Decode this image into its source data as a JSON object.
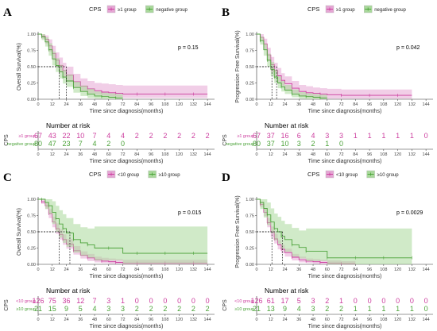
{
  "chart_data": [
    {
      "panel": "A",
      "type": "line",
      "legend_title": "CPS",
      "legend_position": "top",
      "ylabel": "Overall Survival(%)",
      "xlabel": "Time since diagnosis(months)",
      "x_ticks": [
        "0",
        "12",
        "24",
        "36",
        "48",
        "60",
        "72",
        "84",
        "96",
        "108",
        "120",
        "132",
        "144"
      ],
      "y_ticks": [
        "0.00",
        "0.25",
        "0.50",
        "0.75",
        "1.00"
      ],
      "xlim": [
        0,
        150
      ],
      "ylim": [
        0,
        1
      ],
      "p_value": "p = 0.15",
      "median_lines": [
        18,
        24
      ],
      "series": [
        {
          "name": "≥1 group",
          "color": "#CC3D9E",
          "band_color": "#E5A6D4",
          "x": [
            0,
            3,
            6,
            9,
            12,
            15,
            18,
            21,
            24,
            30,
            36,
            42,
            48,
            54,
            60,
            66,
            72,
            84,
            96,
            108,
            120,
            132,
            144
          ],
          "y": [
            1,
            0.97,
            0.92,
            0.82,
            0.7,
            0.6,
            0.52,
            0.44,
            0.37,
            0.27,
            0.2,
            0.16,
            0.13,
            0.11,
            0.1,
            0.09,
            0.08,
            0.08,
            0.08,
            0.08,
            0.08,
            0.08,
            0.08
          ],
          "lower": [
            1,
            0.93,
            0.85,
            0.73,
            0.6,
            0.5,
            0.41,
            0.33,
            0.27,
            0.18,
            0.12,
            0.09,
            0.07,
            0.05,
            0.04,
            0.03,
            0.02,
            0.02,
            0.02,
            0.02,
            0.02,
            0.02,
            0.02
          ],
          "upper": [
            1,
            1,
            0.98,
            0.92,
            0.82,
            0.72,
            0.64,
            0.56,
            0.5,
            0.39,
            0.32,
            0.28,
            0.25,
            0.24,
            0.23,
            0.22,
            0.21,
            0.21,
            0.21,
            0.21,
            0.21,
            0.21,
            0.21
          ]
        },
        {
          "name": "negative group",
          "color": "#4CA33A",
          "band_color": "#A9D89B",
          "x": [
            0,
            3,
            6,
            9,
            12,
            15,
            18,
            21,
            24,
            30,
            36,
            42,
            48,
            54,
            60,
            66,
            72
          ],
          "y": [
            1,
            0.96,
            0.88,
            0.76,
            0.62,
            0.52,
            0.42,
            0.34,
            0.28,
            0.18,
            0.12,
            0.08,
            0.05,
            0.04,
            0.03,
            0.02,
            0.02
          ],
          "lower": [
            1,
            0.91,
            0.81,
            0.67,
            0.52,
            0.42,
            0.32,
            0.24,
            0.19,
            0.1,
            0.05,
            0.02,
            0.01,
            0,
            0,
            0,
            0
          ],
          "upper": [
            1,
            1,
            0.95,
            0.86,
            0.73,
            0.63,
            0.53,
            0.45,
            0.38,
            0.27,
            0.21,
            0.16,
            0.12,
            0.1,
            0.09,
            0.08,
            0.08
          ]
        }
      ],
      "risk_table": {
        "title": "Number at risk",
        "axis_label": "CPS",
        "xlabel": "Time since diagnosis(months)",
        "rows": [
          {
            "label": "≥1 group",
            "values": [
              "67",
              "43",
              "22",
              "10",
              "7",
              "4",
              "4",
              "2",
              "2",
              "2",
              "2",
              "2",
              "2"
            ]
          },
          {
            "label": "negative group",
            "values": [
              "80",
              "47",
              "23",
              "7",
              "4",
              "2",
              "0",
              "",
              "",
              "",
              "",
              "",
              ""
            ]
          }
        ]
      }
    },
    {
      "panel": "B",
      "type": "line",
      "legend_title": "CPS",
      "legend_position": "top",
      "ylabel": "Progression Free Survival(%)",
      "xlabel": "Time since diagnosis(months)",
      "x_ticks": [
        "0",
        "12",
        "24",
        "36",
        "48",
        "60",
        "72",
        "84",
        "96",
        "108",
        "120",
        "132",
        "144"
      ],
      "y_ticks": [
        "0.00",
        "0.25",
        "0.50",
        "0.75",
        "1.00"
      ],
      "xlim": [
        0,
        150
      ],
      "ylim": [
        0,
        1
      ],
      "p_value": "p = 0.042",
      "median_lines": [
        13,
        17
      ],
      "series": [
        {
          "name": "≥1 group",
          "color": "#CC3D9E",
          "band_color": "#E5A6D4",
          "x": [
            0,
            3,
            6,
            9,
            12,
            15,
            18,
            21,
            24,
            30,
            36,
            42,
            48,
            54,
            60,
            72,
            84,
            96,
            108,
            120,
            132
          ],
          "y": [
            1,
            0.95,
            0.85,
            0.68,
            0.53,
            0.44,
            0.36,
            0.29,
            0.24,
            0.17,
            0.12,
            0.1,
            0.09,
            0.08,
            0.07,
            0.06,
            0.06,
            0.06,
            0.06,
            0.06,
            0.06
          ],
          "lower": [
            1,
            0.9,
            0.77,
            0.58,
            0.42,
            0.33,
            0.26,
            0.2,
            0.15,
            0.09,
            0.05,
            0.03,
            0.02,
            0.01,
            0.01,
            0.01,
            0.01,
            0.01,
            0.01,
            0.01,
            0.01
          ],
          "upper": [
            1,
            1,
            0.93,
            0.79,
            0.65,
            0.56,
            0.48,
            0.4,
            0.35,
            0.28,
            0.22,
            0.2,
            0.18,
            0.17,
            0.16,
            0.15,
            0.15,
            0.15,
            0.15,
            0.15,
            0.15
          ]
        },
        {
          "name": "negative group",
          "color": "#4CA33A",
          "band_color": "#A9D89B",
          "x": [
            0,
            3,
            6,
            9,
            12,
            15,
            18,
            21,
            24,
            30,
            36,
            42,
            48,
            54,
            60
          ],
          "y": [
            1,
            0.9,
            0.76,
            0.6,
            0.46,
            0.34,
            0.25,
            0.19,
            0.14,
            0.08,
            0.05,
            0.04,
            0.03,
            0.02,
            0.02
          ],
          "lower": [
            1,
            0.84,
            0.67,
            0.5,
            0.36,
            0.25,
            0.17,
            0.12,
            0.08,
            0.03,
            0.01,
            0,
            0,
            0,
            0
          ],
          "upper": [
            1,
            0.96,
            0.85,
            0.7,
            0.57,
            0.45,
            0.35,
            0.28,
            0.22,
            0.15,
            0.11,
            0.09,
            0.08,
            0.07,
            0.07
          ]
        }
      ],
      "risk_table": {
        "title": "Number at risk",
        "axis_label": "CPS",
        "xlabel": "Time since diagnosis(months)",
        "rows": [
          {
            "label": "≥1 group",
            "values": [
              "67",
              "37",
              "16",
              "6",
              "4",
              "3",
              "3",
              "1",
              "1",
              "1",
              "1",
              "1",
              "0"
            ]
          },
          {
            "label": "negative group",
            "values": [
              "80",
              "37",
              "10",
              "3",
              "2",
              "1",
              "0",
              "",
              "",
              "",
              "",
              "",
              ""
            ]
          }
        ]
      }
    },
    {
      "panel": "C",
      "type": "line",
      "legend_title": "CPS",
      "legend_position": "top",
      "ylabel": "Overall Survival(%)",
      "xlabel": "Time since diagnosis(months)",
      "x_ticks": [
        "0",
        "12",
        "24",
        "36",
        "48",
        "60",
        "72",
        "84",
        "96",
        "108",
        "120",
        "132",
        "144"
      ],
      "y_ticks": [
        "0.00",
        "0.25",
        "0.50",
        "0.75",
        "1.00"
      ],
      "xlim": [
        0,
        150
      ],
      "ylim": [
        0,
        1
      ],
      "p_value": "p = 0.015",
      "median_lines": [
        18,
        27
      ],
      "series": [
        {
          "name": "<10 group",
          "color": "#CC3D9E",
          "band_color": "#E5A6D4",
          "x": [
            0,
            3,
            6,
            9,
            12,
            15,
            18,
            21,
            24,
            30,
            36,
            42,
            48,
            54,
            60,
            66,
            72,
            84,
            96,
            108,
            120,
            132,
            144
          ],
          "y": [
            1,
            0.96,
            0.9,
            0.78,
            0.65,
            0.55,
            0.46,
            0.38,
            0.31,
            0.21,
            0.14,
            0.1,
            0.07,
            0.05,
            0.04,
            0.03,
            0.02,
            0.02,
            0.02,
            0.02,
            0.02,
            0.02,
            0.02
          ],
          "lower": [
            1,
            0.93,
            0.85,
            0.71,
            0.57,
            0.47,
            0.38,
            0.3,
            0.24,
            0.15,
            0.09,
            0.05,
            0.03,
            0.02,
            0.01,
            0.01,
            0,
            0,
            0,
            0,
            0,
            0,
            0
          ],
          "upper": [
            1,
            0.99,
            0.95,
            0.85,
            0.73,
            0.63,
            0.54,
            0.46,
            0.39,
            0.28,
            0.2,
            0.16,
            0.12,
            0.1,
            0.09,
            0.08,
            0.07,
            0.07,
            0.07,
            0.07,
            0.07,
            0.07,
            0.07
          ]
        },
        {
          "name": "≥10 group",
          "color": "#4CA33A",
          "band_color": "#A9D89B",
          "x": [
            0,
            3,
            6,
            9,
            12,
            15,
            18,
            21,
            24,
            30,
            36,
            42,
            48,
            60,
            72,
            84,
            96,
            108,
            120,
            132,
            144
          ],
          "y": [
            1,
            1,
            0.95,
            0.9,
            0.8,
            0.7,
            0.62,
            0.55,
            0.48,
            0.38,
            0.33,
            0.3,
            0.25,
            0.25,
            0.17,
            0.17,
            0.17,
            0.17,
            0.17,
            0.17,
            0.17
          ],
          "lower": [
            1,
            1,
            0.85,
            0.77,
            0.62,
            0.5,
            0.41,
            0.33,
            0.27,
            0.18,
            0.13,
            0.1,
            0.06,
            0.06,
            0.01,
            0.01,
            0.01,
            0.01,
            0.01,
            0.01,
            0.01
          ],
          "upper": [
            1,
            1,
            1,
            1,
            0.97,
            0.9,
            0.83,
            0.77,
            0.71,
            0.62,
            0.57,
            0.55,
            0.58,
            0.58,
            0.58,
            0.58,
            0.58,
            0.58,
            0.58,
            0.58,
            0.58
          ]
        }
      ],
      "risk_table": {
        "title": "Number at risk",
        "axis_label": "CPS",
        "xlabel": "Time since diagnosis(months)",
        "rows": [
          {
            "label": "<10 group",
            "values": [
              "126",
              "75",
              "36",
              "12",
              "7",
              "3",
              "1",
              "0",
              "0",
              "0",
              "0",
              "0",
              "0"
            ]
          },
          {
            "label": "≥10 group",
            "values": [
              "21",
              "15",
              "9",
              "5",
              "4",
              "3",
              "3",
              "2",
              "2",
              "2",
              "2",
              "2",
              "2"
            ]
          }
        ]
      }
    },
    {
      "panel": "D",
      "type": "line",
      "legend_title": "CPS",
      "legend_position": "top",
      "ylabel": "Progression Free Survival(%)",
      "xlabel": "Time since diagnosis(months)",
      "x_ticks": [
        "0",
        "12",
        "24",
        "36",
        "48",
        "60",
        "72",
        "84",
        "96",
        "108",
        "120",
        "132",
        "144"
      ],
      "y_ticks": [
        "0.00",
        "0.25",
        "0.50",
        "0.75",
        "1.00"
      ],
      "xlim": [
        0,
        150
      ],
      "ylim": [
        0,
        1
      ],
      "p_value": "p = 0.0029",
      "median_lines": [
        13,
        22
      ],
      "series": [
        {
          "name": "<10 group",
          "color": "#CC3D9E",
          "band_color": "#E5A6D4",
          "x": [
            0,
            3,
            6,
            9,
            12,
            15,
            18,
            21,
            24,
            30,
            36,
            42,
            48,
            54,
            60,
            72,
            84
          ],
          "y": [
            1,
            0.92,
            0.8,
            0.64,
            0.5,
            0.39,
            0.3,
            0.23,
            0.18,
            0.11,
            0.07,
            0.05,
            0.04,
            0.03,
            0.02,
            0.01,
            0.01
          ],
          "lower": [
            1,
            0.88,
            0.74,
            0.57,
            0.42,
            0.32,
            0.23,
            0.17,
            0.12,
            0.06,
            0.03,
            0.02,
            0.01,
            0,
            0,
            0,
            0
          ],
          "upper": [
            1,
            0.96,
            0.86,
            0.71,
            0.58,
            0.47,
            0.37,
            0.3,
            0.24,
            0.16,
            0.12,
            0.09,
            0.08,
            0.07,
            0.06,
            0.05,
            0.05
          ]
        },
        {
          "name": "≥10 group",
          "color": "#4CA33A",
          "band_color": "#A9D89B",
          "x": [
            0,
            3,
            6,
            9,
            12,
            15,
            18,
            21,
            24,
            30,
            36,
            42,
            48,
            60,
            72,
            84,
            96,
            108,
            120,
            132
          ],
          "y": [
            1,
            0.95,
            0.86,
            0.76,
            0.65,
            0.55,
            0.5,
            0.43,
            0.38,
            0.3,
            0.26,
            0.2,
            0.2,
            0.1,
            0.1,
            0.1,
            0.1,
            0.1,
            0.1,
            0.1
          ],
          "lower": [
            1,
            0.85,
            0.72,
            0.6,
            0.48,
            0.37,
            0.31,
            0.24,
            0.19,
            0.12,
            0.09,
            0.05,
            0.05,
            0,
            0,
            0,
            0,
            0,
            0,
            0
          ],
          "upper": [
            1,
            1,
            1,
            0.95,
            0.86,
            0.78,
            0.73,
            0.67,
            0.62,
            0.56,
            0.52,
            0.55,
            0.55,
            0.55,
            0.55,
            0.55,
            0.55,
            0.55,
            0.55,
            0.55
          ]
        }
      ],
      "risk_table": {
        "title": "Number at risk",
        "axis_label": "CPS",
        "xlabel": "Time since diagnosis(months)",
        "rows": [
          {
            "label": "<10 group",
            "values": [
              "126",
              "61",
              "17",
              "5",
              "3",
              "2",
              "1",
              "0",
              "0",
              "0",
              "0",
              "0",
              "0"
            ]
          },
          {
            "label": "≥10 group",
            "values": [
              "21",
              "13",
              "9",
              "4",
              "3",
              "2",
              "2",
              "1",
              "1",
              "1",
              "1",
              "1",
              "0"
            ]
          }
        ]
      }
    }
  ]
}
